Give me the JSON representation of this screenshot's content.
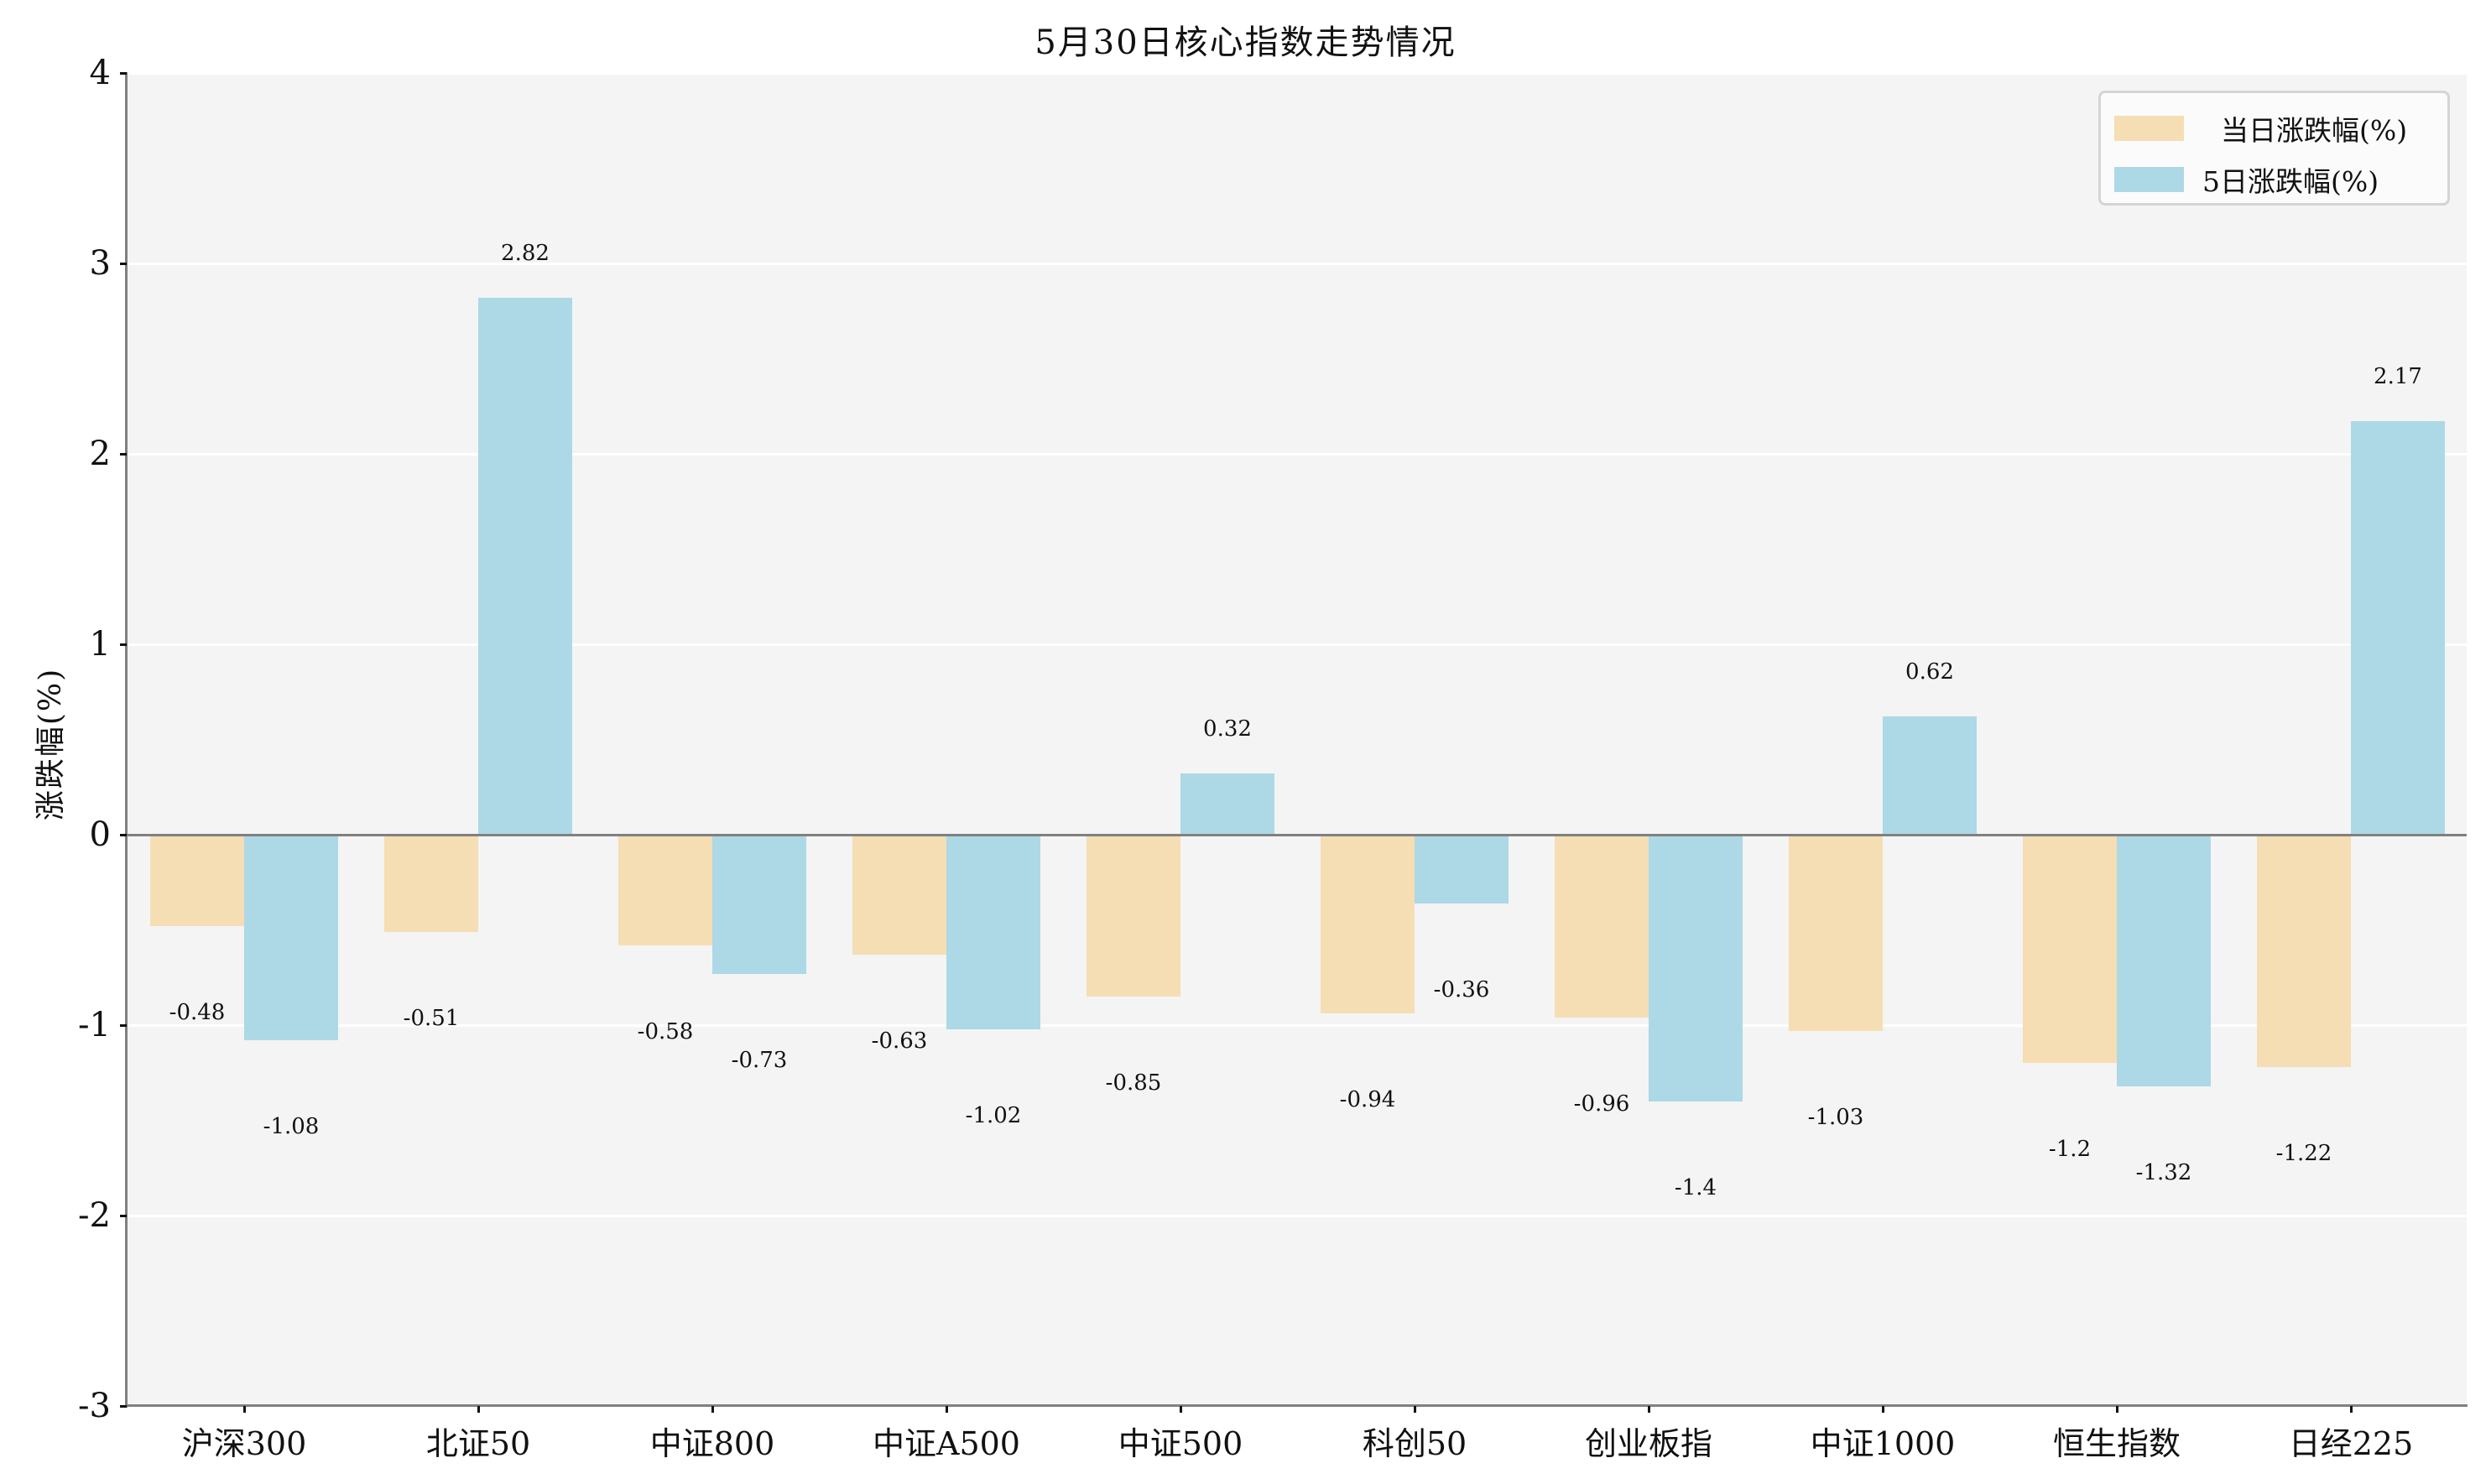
{
  "title": "5月30日核心指数走势情况",
  "y_axis": {
    "title": "涨跌幅(%)",
    "ticks": [
      "4",
      "3",
      "2",
      "1",
      "0",
      "-1",
      "-2",
      "-3"
    ]
  },
  "legend": {
    "items": [
      {
        "label": "当日涨跌幅(%)",
        "color": "#F5DEB3"
      },
      {
        "label": "5日涨跌幅(%)",
        "color": "#ADD8E6"
      }
    ]
  },
  "colors": {
    "daily": "#F5DEB3",
    "five_day": "#ADD8E6",
    "plot_background": "#F4F4F4",
    "axis": "#808080"
  },
  "chart_data": {
    "type": "bar",
    "title": "5月30日核心指数走势情况",
    "xlabel": "",
    "ylabel": "涨跌幅(%)",
    "ylim": [
      -3,
      4
    ],
    "yticks": [
      -3,
      -2,
      -1,
      0,
      1,
      2,
      3,
      4
    ],
    "grid": true,
    "legend_position": "upper right",
    "categories": [
      "沪深300",
      "北证50",
      "中证800",
      "中证A500",
      "中证500",
      "科创50",
      "创业板指",
      "中证1000",
      "恒生指数",
      "日经225"
    ],
    "series": [
      {
        "name": "当日涨跌幅(%)",
        "color": "#F5DEB3",
        "values": [
          -0.48,
          -0.51,
          -0.58,
          -0.63,
          -0.85,
          -0.94,
          -0.96,
          -1.03,
          -1.2,
          -1.22
        ]
      },
      {
        "name": "5日涨跌幅(%)",
        "color": "#ADD8E6",
        "values": [
          -1.08,
          2.82,
          -0.73,
          -1.02,
          0.32,
          -0.36,
          -1.4,
          0.62,
          -1.32,
          2.17
        ]
      }
    ],
    "data_labels": {
      "daily": [
        "-0.48",
        "-0.51",
        "-0.58",
        "-0.63",
        "-0.85",
        "-0.94",
        "-0.96",
        "-1.03",
        "-1.2",
        "-1.22"
      ],
      "five_day": [
        "-1.08",
        "2.82",
        "-0.73",
        "-1.02",
        "0.32",
        "-0.36",
        "-1.4",
        "0.62",
        "-1.32",
        "2.17"
      ]
    }
  }
}
